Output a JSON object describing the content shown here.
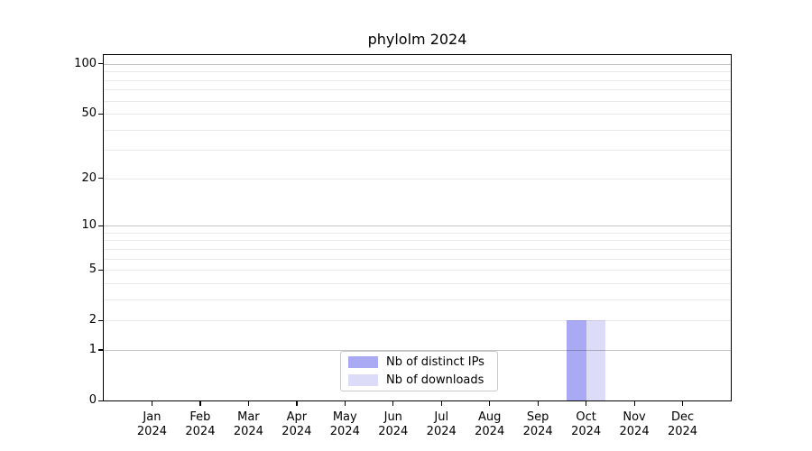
{
  "chart_data": {
    "type": "bar",
    "title": "phylolm 2024",
    "categories": [
      "Jan",
      "Feb",
      "Mar",
      "Apr",
      "May",
      "Jun",
      "Jul",
      "Aug",
      "Sep",
      "Oct",
      "Nov",
      "Dec"
    ],
    "x_year_line": "2024",
    "series": [
      {
        "name": "Nb of distinct IPs",
        "color": "#aaaaf4",
        "values": [
          0,
          0,
          0,
          0,
          0,
          0,
          0,
          0,
          0,
          2,
          0,
          0
        ]
      },
      {
        "name": "Nb of downloads",
        "color": "#dcdcf8",
        "values": [
          0,
          0,
          0,
          0,
          0,
          0,
          0,
          0,
          0,
          2,
          0,
          0
        ]
      }
    ],
    "xlabel": "",
    "ylabel": "",
    "yticks": [
      0,
      1,
      2,
      5,
      10,
      20,
      50,
      100
    ],
    "ylim": [
      0,
      113
    ],
    "y_scale": "log10(value+1)",
    "grid": {
      "major_values": [
        1,
        10,
        100
      ],
      "minor_values": [
        2,
        3,
        4,
        5,
        6,
        7,
        8,
        9,
        20,
        30,
        40,
        50,
        60,
        70,
        80,
        90
      ],
      "major_color": "#c4c4c4",
      "minor_color": "#e9e9e9"
    },
    "legend": {
      "position": "lower center"
    },
    "colors": {
      "axis": "#000000",
      "text": "#000000",
      "background": "#ffffff"
    }
  }
}
